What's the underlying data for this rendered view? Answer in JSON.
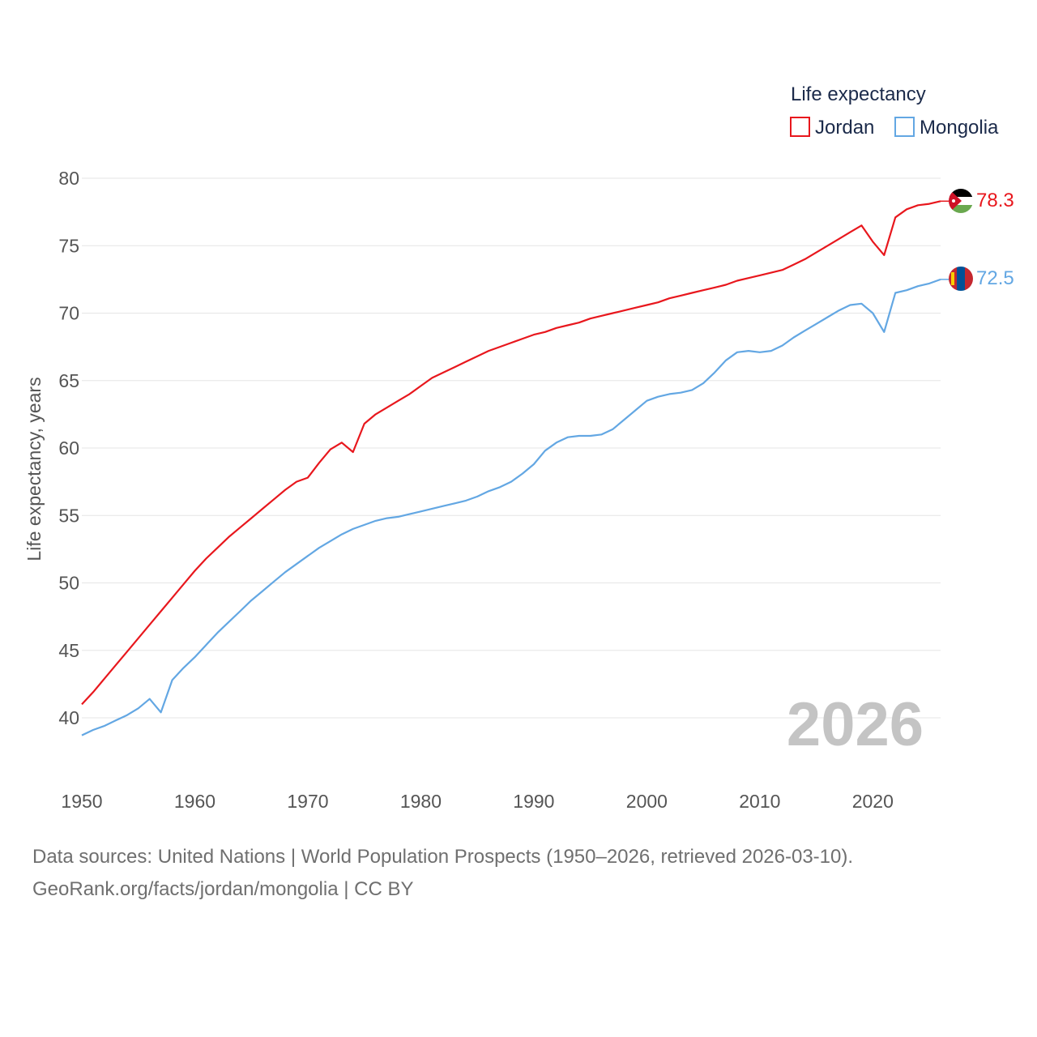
{
  "colors": {
    "jordan": "#e8171d",
    "mongolia": "#63a7e3",
    "grid": "#e6e6e6",
    "year_label": "#c4c4c4"
  },
  "legend": {
    "title": "Life expectancy",
    "items": [
      {
        "name": "Jordan",
        "color": "#e8171d"
      },
      {
        "name": "Mongolia",
        "color": "#63a7e3"
      }
    ]
  },
  "year_label": "2026",
  "end_values": {
    "jordan": "78.3",
    "mongolia": "72.5"
  },
  "footer": {
    "line1": "Data sources: United Nations | World Population Prospects (1950–2026, retrieved 2026-03-10).",
    "line2": "GeoRank.org/facts/jordan/mongolia | CC BY"
  },
  "chart_data": {
    "type": "line",
    "title": "Life expectancy",
    "xlabel": "",
    "ylabel": "Life expectancy, years",
    "xlim": [
      1950,
      2026
    ],
    "ylim": [
      40,
      80
    ],
    "grid": true,
    "legend_position": "top-right",
    "x_ticks": [
      1950,
      1960,
      1970,
      1980,
      1990,
      2000,
      2010,
      2020
    ],
    "y_ticks": [
      40,
      45,
      50,
      55,
      60,
      65,
      70,
      75,
      80
    ],
    "x": [
      1950,
      1951,
      1952,
      1953,
      1954,
      1955,
      1956,
      1957,
      1958,
      1959,
      1960,
      1961,
      1962,
      1963,
      1964,
      1965,
      1966,
      1967,
      1968,
      1969,
      1970,
      1971,
      1972,
      1973,
      1974,
      1975,
      1976,
      1977,
      1978,
      1979,
      1980,
      1981,
      1982,
      1983,
      1984,
      1985,
      1986,
      1987,
      1988,
      1989,
      1990,
      1991,
      1992,
      1993,
      1994,
      1995,
      1996,
      1997,
      1998,
      1999,
      2000,
      2001,
      2002,
      2003,
      2004,
      2005,
      2006,
      2007,
      2008,
      2009,
      2010,
      2011,
      2012,
      2013,
      2014,
      2015,
      2016,
      2017,
      2018,
      2019,
      2020,
      2021,
      2022,
      2023,
      2024,
      2025,
      2026
    ],
    "series": [
      {
        "name": "Jordan",
        "values": [
          41.0,
          41.9,
          42.9,
          43.9,
          44.9,
          45.9,
          46.9,
          47.9,
          48.9,
          49.9,
          50.9,
          51.8,
          52.6,
          53.4,
          54.1,
          54.8,
          55.5,
          56.2,
          56.9,
          57.5,
          57.8,
          58.9,
          59.9,
          60.4,
          59.7,
          61.8,
          62.5,
          63.0,
          63.5,
          64.0,
          64.6,
          65.2,
          65.6,
          66.0,
          66.4,
          66.8,
          67.2,
          67.5,
          67.8,
          68.1,
          68.4,
          68.6,
          68.9,
          69.1,
          69.3,
          69.6,
          69.8,
          70.0,
          70.2,
          70.4,
          70.6,
          70.8,
          71.1,
          71.3,
          71.5,
          71.7,
          71.9,
          72.1,
          72.4,
          72.6,
          72.8,
          73.0,
          73.2,
          73.6,
          74.0,
          74.5,
          75.0,
          75.5,
          76.0,
          76.5,
          75.3,
          74.3,
          77.1,
          77.7,
          78.0,
          78.1,
          78.3
        ],
        "color": "#e8171d"
      },
      {
        "name": "Mongolia",
        "values": [
          38.7,
          39.1,
          39.4,
          39.8,
          40.2,
          40.7,
          41.4,
          40.4,
          42.8,
          43.7,
          44.5,
          45.4,
          46.3,
          47.1,
          47.9,
          48.7,
          49.4,
          50.1,
          50.8,
          51.4,
          52.0,
          52.6,
          53.1,
          53.6,
          54.0,
          54.3,
          54.6,
          54.8,
          54.9,
          55.1,
          55.3,
          55.5,
          55.7,
          55.9,
          56.1,
          56.4,
          56.8,
          57.1,
          57.5,
          58.1,
          58.8,
          59.8,
          60.4,
          60.8,
          60.9,
          60.9,
          61.0,
          61.4,
          62.1,
          62.8,
          63.5,
          63.8,
          64.0,
          64.1,
          64.3,
          64.8,
          65.6,
          66.5,
          67.1,
          67.2,
          67.1,
          67.2,
          67.6,
          68.2,
          68.7,
          69.2,
          69.7,
          70.2,
          70.6,
          70.7,
          70.0,
          68.6,
          71.5,
          71.7,
          72.0,
          72.2,
          72.5
        ],
        "color": "#63a7e3"
      }
    ]
  }
}
